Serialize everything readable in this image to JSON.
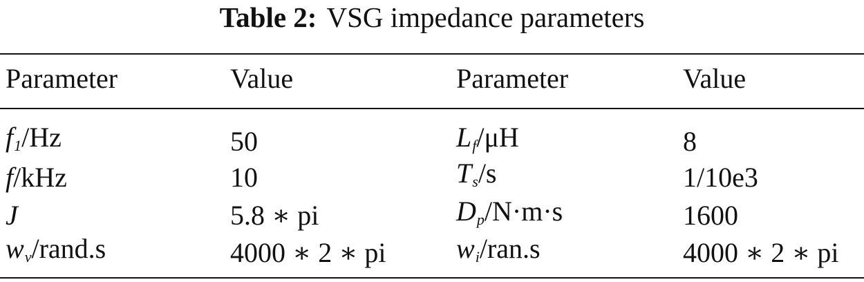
{
  "title": {
    "label": "Table 2:",
    "text": "VSG impedance parameters"
  },
  "table": {
    "header": [
      "Parameter",
      "Value",
      "Parameter",
      "Value"
    ],
    "rows": [
      [
        {
          "symbol": "f",
          "sub": "1",
          "unit": "/Hz"
        },
        "50",
        {
          "symbol": "L",
          "sub": "f",
          "unit": "/μH"
        },
        "8"
      ],
      [
        {
          "symbol": "f",
          "unit": "/kHz"
        },
        "10",
        {
          "symbol": "T",
          "sub": "s",
          "unit": "/s"
        },
        "1/10e3"
      ],
      [
        {
          "symbol": "J"
        },
        "5.8 ∗ pi",
        {
          "symbol": "D",
          "sub": "p",
          "unit": "/N·m·s"
        },
        "1600"
      ],
      [
        {
          "symbol": "w",
          "sub": "v",
          "unit": "/rand.s"
        },
        "4000 ∗ 2 ∗ pi",
        {
          "symbol": "w",
          "sub": "i",
          "unit": "/ran.s"
        },
        "4000 ∗ 2 ∗ pi"
      ]
    ]
  }
}
